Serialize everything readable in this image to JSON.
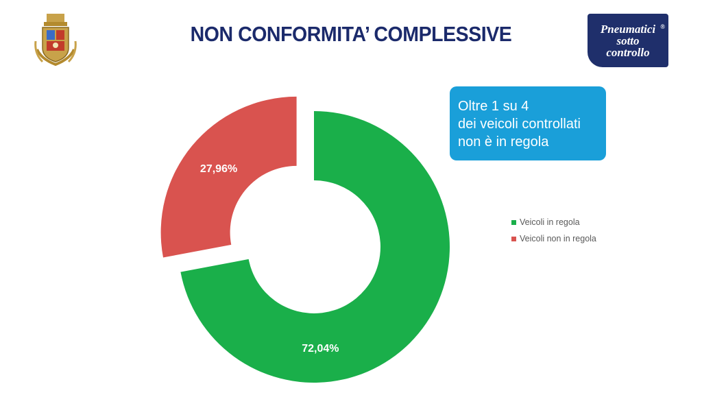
{
  "header": {
    "title": "NON CONFORMITA’ COMPLESSIVE"
  },
  "logo": {
    "lines": [
      "Pneumatici",
      "sotto",
      "controllo"
    ],
    "registered_mark": "®"
  },
  "callout": {
    "lines": [
      "Oltre 1 su 4",
      "dei veicoli controllati",
      "non è in regola"
    ]
  },
  "emblem": {
    "icon": "police-emblem-icon"
  },
  "colors": {
    "title": "#1b2a6b",
    "callout_bg": "#1a9fd9",
    "logo_bg": "#1f2f6b"
  },
  "chart_data": {
    "type": "pie",
    "variant": "doughnut-exploded",
    "title": "",
    "series": [
      {
        "name": "Veicoli in regola",
        "value": 72.04,
        "label": "72,04%",
        "color": "#1aaf4a"
      },
      {
        "name": "Veicoli non in regola",
        "value": 27.96,
        "label": "27,96%",
        "color": "#d9534f"
      }
    ],
    "legend_position": "right"
  }
}
